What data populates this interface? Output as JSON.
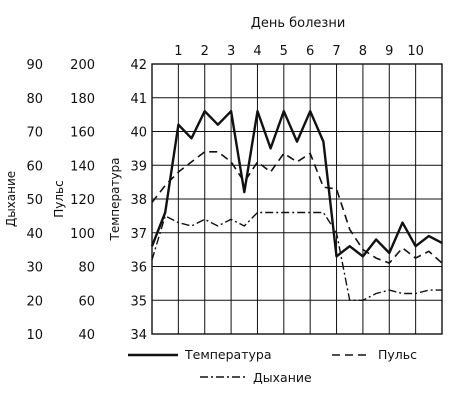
{
  "chart_data": {
    "type": "line",
    "title": "День болезни",
    "days": [
      "1",
      "2",
      "3",
      "4",
      "5",
      "6",
      "7",
      "8",
      "9",
      "10"
    ],
    "axes": {
      "temperature": {
        "label": "Температура",
        "ticks": [
          "42",
          "41",
          "40",
          "39",
          "38",
          "37",
          "36",
          "35",
          "34"
        ],
        "range": [
          34,
          42
        ]
      },
      "pulse": {
        "label": "Пульс",
        "ticks": [
          "200",
          "180",
          "160",
          "140",
          "120",
          "100",
          "80",
          "60",
          "40"
        ],
        "range": [
          40,
          200
        ]
      },
      "respiration": {
        "label": "Дыхание",
        "ticks": [
          "90",
          "80",
          "70",
          "60",
          "50",
          "40",
          "30",
          "20",
          "10"
        ],
        "range": [
          10,
          90
        ]
      }
    },
    "series": [
      {
        "name": "Температура",
        "style": "solid",
        "axis": "temperature",
        "x": [
          0.0,
          0.5,
          1.0,
          1.5,
          2.0,
          2.5,
          3.0,
          3.5,
          4.0,
          4.5,
          5.0,
          5.5,
          6.0,
          6.5,
          7.0,
          7.5,
          8.0,
          8.5,
          9.0,
          9.5,
          10.0,
          10.5,
          11.0
        ],
        "values": [
          36.6,
          37.6,
          40.2,
          39.8,
          40.6,
          40.2,
          40.6,
          38.2,
          40.6,
          39.5,
          40.6,
          39.7,
          40.6,
          39.7,
          36.3,
          36.6,
          36.3,
          36.8,
          36.4,
          37.3,
          36.6,
          36.9,
          36.7
        ]
      },
      {
        "name": "Пульс",
        "style": "dashed",
        "axis": "pulse",
        "x": [
          0.0,
          0.5,
          1.0,
          1.5,
          2.0,
          2.5,
          3.0,
          3.5,
          4.0,
          4.5,
          5.0,
          5.5,
          6.0,
          6.5,
          7.0,
          7.5,
          8.0,
          8.5,
          9.0,
          9.5,
          10.0,
          10.5,
          11.0
        ],
        "values": [
          118,
          128,
          136,
          142,
          148,
          148,
          142,
          130,
          142,
          136,
          147,
          142,
          147,
          127,
          126,
          102,
          90,
          85,
          82,
          91,
          85,
          89,
          82
        ]
      },
      {
        "name": "Дыхание",
        "style": "dash-dot",
        "axis": "respiration",
        "x": [
          0.0,
          0.5,
          1.0,
          1.5,
          2.0,
          2.5,
          3.0,
          3.5,
          4.0,
          4.5,
          5.0,
          5.5,
          6.0,
          6.5,
          7.0,
          7.5,
          8.0,
          8.5,
          9.0,
          9.5,
          10.0,
          10.5,
          11.0
        ],
        "values": [
          32,
          45,
          43,
          42,
          44,
          42,
          44,
          42,
          46,
          46,
          46,
          46,
          46,
          46,
          40,
          20,
          20,
          22,
          23,
          22,
          22,
          23,
          23
        ]
      }
    ],
    "legend": [
      "Температура",
      "Пульс",
      "Дыхание"
    ],
    "grid": true,
    "colors": {
      "ink": "#111111",
      "background": "#ffffff"
    }
  }
}
